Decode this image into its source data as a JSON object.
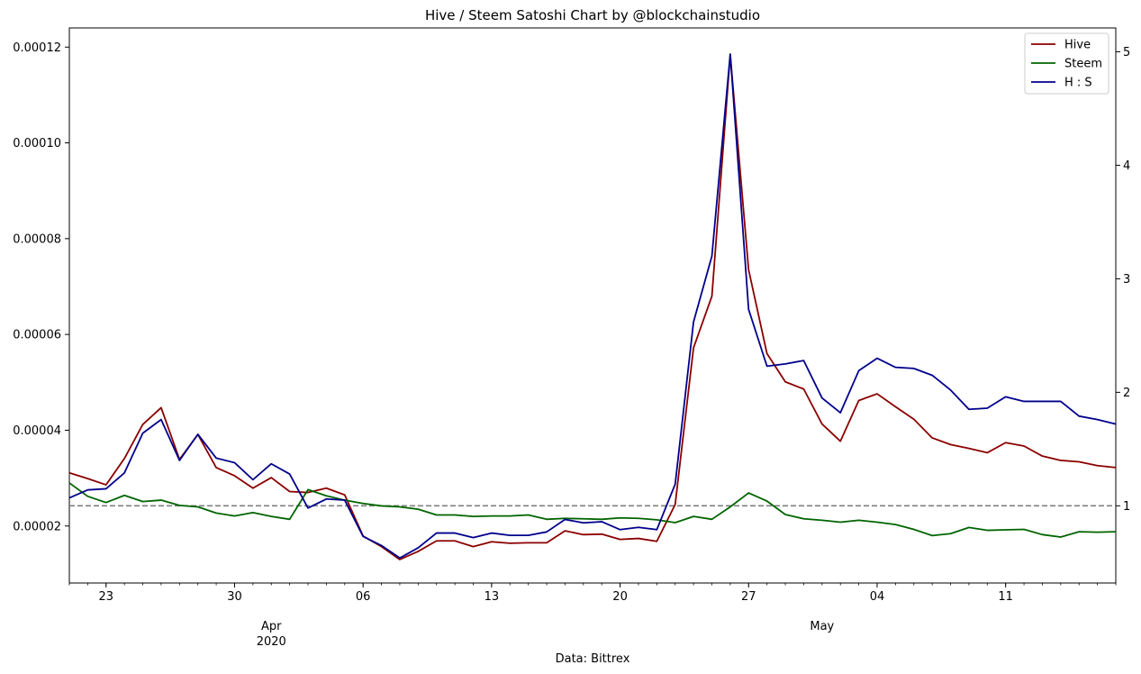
{
  "chart_data": {
    "type": "line",
    "title": "Hive / Steem Satoshi Chart by @blockchainstudio",
    "xlabel": "Data: Bittrex",
    "x_ticks": [
      {
        "date": "2020-03-23",
        "label": "23"
      },
      {
        "date": "2020-03-30",
        "label": "30"
      },
      {
        "date": "2020-04-06",
        "label": "06"
      },
      {
        "date": "2020-04-13",
        "label": "13"
      },
      {
        "date": "2020-04-20",
        "label": "20"
      },
      {
        "date": "2020-04-27",
        "label": "27"
      },
      {
        "date": "2020-05-04",
        "label": "04"
      },
      {
        "date": "2020-05-11",
        "label": "11"
      }
    ],
    "x_month_labels": [
      {
        "date": "2020-04-01",
        "label": "Apr",
        "sub": "2020"
      },
      {
        "date": "2020-05-01",
        "label": "May",
        "sub": ""
      }
    ],
    "xlim": [
      "2020-03-21",
      "2020-05-17"
    ],
    "y_left": {
      "ticks": [
        "0.00002",
        "0.00004",
        "0.00006",
        "0.00008",
        "0.00010",
        "0.00012"
      ],
      "tick_values": [
        2e-05,
        4e-05,
        6e-05,
        8e-05,
        0.0001,
        0.00012
      ],
      "lim": [
        8.1e-06,
        0.000124
      ]
    },
    "y_right": {
      "ticks": [
        "1",
        "2",
        "3",
        "4",
        "5"
      ],
      "tick_values": [
        1,
        2,
        3,
        4,
        5
      ],
      "lim": [
        0.32,
        5.21
      ]
    },
    "reference_line": {
      "axis": "right",
      "value": 1,
      "style": "dashed",
      "color": "#808080"
    },
    "legend_position": "top-right",
    "dates": [
      "2020-03-21",
      "2020-03-22",
      "2020-03-23",
      "2020-03-24",
      "2020-03-25",
      "2020-03-26",
      "2020-03-27",
      "2020-03-28",
      "2020-03-29",
      "2020-03-30",
      "2020-03-31",
      "2020-04-01",
      "2020-04-02",
      "2020-04-03",
      "2020-04-04",
      "2020-04-05",
      "2020-04-06",
      "2020-04-07",
      "2020-04-08",
      "2020-04-09",
      "2020-04-10",
      "2020-04-11",
      "2020-04-12",
      "2020-04-13",
      "2020-04-14",
      "2020-04-15",
      "2020-04-16",
      "2020-04-17",
      "2020-04-18",
      "2020-04-19",
      "2020-04-20",
      "2020-04-21",
      "2020-04-22",
      "2020-04-23",
      "2020-04-24",
      "2020-04-25",
      "2020-04-26",
      "2020-04-27",
      "2020-04-28",
      "2020-04-29",
      "2020-04-30",
      "2020-05-01",
      "2020-05-02",
      "2020-05-03",
      "2020-05-04",
      "2020-05-05",
      "2020-05-06",
      "2020-05-07",
      "2020-05-08",
      "2020-05-09",
      "2020-05-10",
      "2020-05-11",
      "2020-05-12",
      "2020-05-13",
      "2020-05-14",
      "2020-05-15",
      "2020-05-16",
      "2020-05-17"
    ],
    "series": [
      {
        "name": "Hive",
        "axis": "left",
        "color": "#8b0000",
        "values": [
          3.11e-05,
          2.99e-05,
          2.86e-05,
          3.41e-05,
          4.12e-05,
          4.47e-05,
          3.39e-05,
          3.91e-05,
          3.22e-05,
          3.05e-05,
          2.79e-05,
          3.01e-05,
          2.72e-05,
          2.7e-05,
          2.79e-05,
          2.65e-05,
          1.79e-05,
          1.57e-05,
          1.3e-05,
          1.47e-05,
          1.69e-05,
          1.69e-05,
          1.57e-05,
          1.67e-05,
          1.64e-05,
          1.65e-05,
          1.65e-05,
          1.9e-05,
          1.82e-05,
          1.83e-05,
          1.72e-05,
          1.74e-05,
          1.68e-05,
          2.45e-05,
          5.72e-05,
          6.8e-05,
          0.0001184,
          7.35e-05,
          5.6e-05,
          5.01e-05,
          4.86e-05,
          4.13e-05,
          3.77e-05,
          4.62e-05,
          4.76e-05,
          4.49e-05,
          4.23e-05,
          3.84e-05,
          3.7e-05,
          3.62e-05,
          3.53e-05,
          3.74e-05,
          3.67e-05,
          3.46e-05,
          3.37e-05,
          3.34e-05,
          3.26e-05,
          3.22e-05
        ]
      },
      {
        "name": "Steem",
        "axis": "left",
        "color": "#006400",
        "values": [
          2.9e-05,
          2.62e-05,
          2.49e-05,
          2.64e-05,
          2.51e-05,
          2.54e-05,
          2.43e-05,
          2.4e-05,
          2.27e-05,
          2.21e-05,
          2.28e-05,
          2.2e-05,
          2.14e-05,
          2.76e-05,
          2.63e-05,
          2.54e-05,
          2.47e-05,
          2.42e-05,
          2.4e-05,
          2.35e-05,
          2.23e-05,
          2.23e-05,
          2.2e-05,
          2.21e-05,
          2.21e-05,
          2.23e-05,
          2.14e-05,
          2.16e-05,
          2.15e-05,
          2.14e-05,
          2.17e-05,
          2.16e-05,
          2.13e-05,
          2.07e-05,
          2.2e-05,
          2.14e-05,
          2.4e-05,
          2.69e-05,
          2.52e-05,
          2.24e-05,
          2.15e-05,
          2.12e-05,
          2.08e-05,
          2.12e-05,
          2.08e-05,
          2.03e-05,
          1.93e-05,
          1.8e-05,
          1.84e-05,
          1.97e-05,
          1.91e-05,
          1.92e-05,
          1.93e-05,
          1.82e-05,
          1.77e-05,
          1.88e-05,
          1.87e-05,
          1.88e-05
        ]
      },
      {
        "name": "H : S",
        "axis": "right",
        "color": "#00008b",
        "values": [
          1.07,
          1.14,
          1.15,
          1.29,
          1.64,
          1.76,
          1.4,
          1.63,
          1.42,
          1.38,
          1.23,
          1.37,
          1.28,
          0.98,
          1.06,
          1.05,
          0.73,
          0.65,
          0.54,
          0.63,
          0.76,
          0.76,
          0.72,
          0.76,
          0.74,
          0.74,
          0.77,
          0.88,
          0.85,
          0.86,
          0.79,
          0.81,
          0.79,
          1.19,
          2.62,
          3.2,
          4.98,
          2.73,
          2.23,
          2.25,
          2.28,
          1.95,
          1.82,
          2.19,
          2.3,
          2.22,
          2.21,
          2.15,
          2.02,
          1.85,
          1.86,
          1.96,
          1.92,
          1.92,
          1.92,
          1.79,
          1.76,
          1.72
        ]
      }
    ]
  }
}
